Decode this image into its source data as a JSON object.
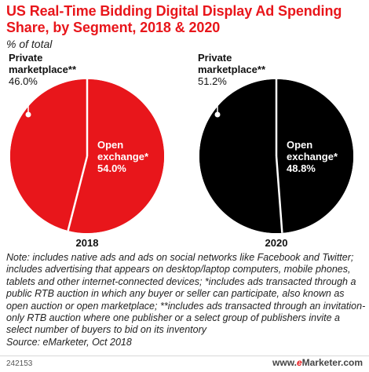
{
  "header": {
    "title": "US Real-Time Bidding Digital Display Ad Spending Share, by Segment, 2018 & 2020",
    "subtitle": "% of total"
  },
  "chart_data": [
    {
      "type": "pie",
      "label": "2018",
      "slices": [
        {
          "name": "Private marketplace**",
          "value": 46.0,
          "display": "46.0%",
          "color": "#ffffff"
        },
        {
          "name": "Open exchange*",
          "value": 54.0,
          "display": "54.0%",
          "color": "#e8161b"
        }
      ],
      "face_color": "#e8161b"
    },
    {
      "type": "pie",
      "label": "2020",
      "slices": [
        {
          "name": "Private marketplace**",
          "value": 51.2,
          "display": "51.2%",
          "color": "#000000"
        },
        {
          "name": "Open exchange*",
          "value": 48.8,
          "display": "48.8%",
          "color": "#000000"
        }
      ],
      "face_color": "#000000"
    }
  ],
  "footer": {
    "note": "Note: includes native ads and ads on social networks like Facebook and Twitter; includes advertising that appears on desktop/laptop computers, mobile phones, tablets and other internet-connected devices; *includes ads transacted through a public RTB auction in which any buyer or seller can participate, also known as open auction or open marketplace; **includes ads transacted through an invitation-only RTB auction where one publisher or a select group of publishers invite a select number of buyers to bid on its inventory",
    "source": "Source: eMarketer, Oct 2018",
    "chart_id": "242153",
    "brand_prefix": "www.",
    "brand_e": "e",
    "brand_rest": "Marketer.com"
  },
  "colors": {
    "accent": "#e8161b",
    "dark": "#000000",
    "divider": "#ffffff"
  }
}
